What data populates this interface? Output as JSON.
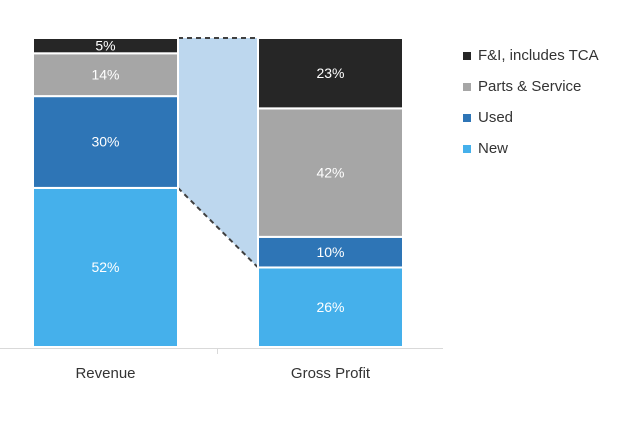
{
  "chart_data": {
    "type": "bar",
    "stacked": true,
    "categories": [
      "Revenue",
      "Gross Profit"
    ],
    "series": [
      {
        "name": "New",
        "color": "#45b0eb",
        "values": [
          52,
          26
        ]
      },
      {
        "name": "Used",
        "color": "#2e75b6",
        "values": [
          30,
          10
        ]
      },
      {
        "name": "Parts & Service",
        "color": "#a6a6a6",
        "values": [
          14,
          42
        ]
      },
      {
        "name": "F&I, includes TCA",
        "color": "#262626",
        "values": [
          5,
          23
        ]
      }
    ],
    "data_labels": [
      [
        "52%",
        "30%",
        "14%",
        "5%"
      ],
      [
        "26%",
        "10%",
        "42%",
        "23%"
      ]
    ],
    "legend": {
      "placement": "right",
      "entries": [
        {
          "label": "F&I, includes TCA",
          "color": "#262626"
        },
        {
          "label": "Parts & Service",
          "color": "#a6a6a6"
        },
        {
          "label": "Used",
          "color": "#2e75b6"
        },
        {
          "label": "New",
          "color": "#45b0eb"
        }
      ]
    },
    "connector_color": "#bdd7ee",
    "ylim": [
      0,
      101
    ],
    "title": "",
    "xlabel": "",
    "ylabel": ""
  }
}
